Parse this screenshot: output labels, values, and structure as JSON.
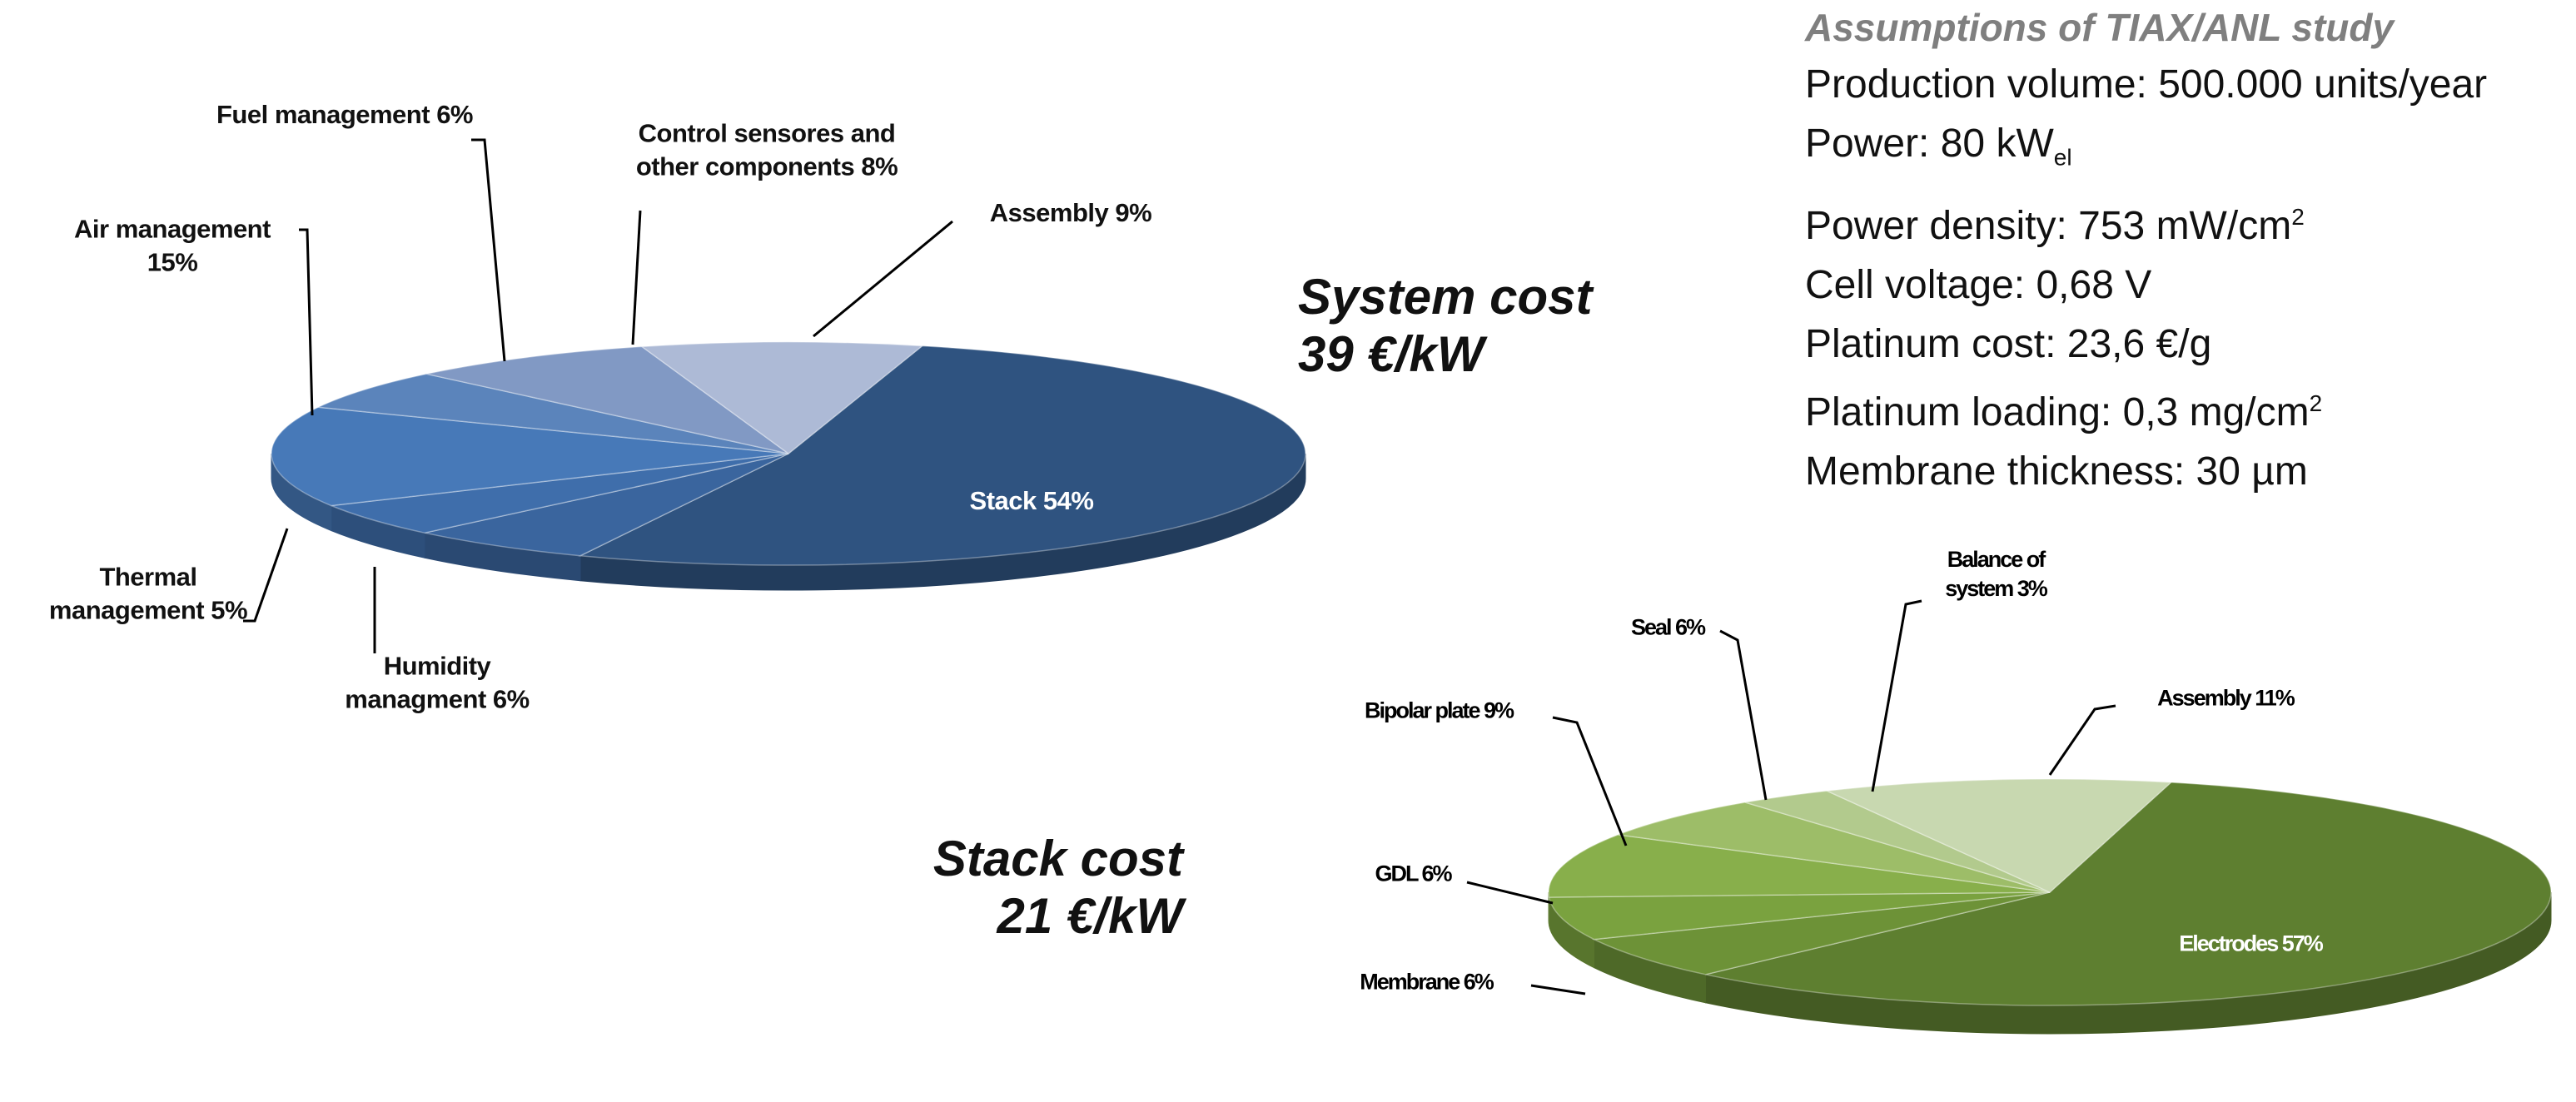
{
  "chart_data": [
    {
      "type": "pie",
      "title": "System cost",
      "subtitle": "39 €/kW",
      "categories": [
        "Stack",
        "Humidity managment",
        "Thermal management",
        "Air management",
        "Fuel management",
        "Control sensores and other components",
        "Assembly"
      ],
      "values": [
        54,
        6,
        5,
        15,
        6,
        8,
        9
      ],
      "value_labels": [
        "54%",
        "6%",
        "5%",
        "15%",
        "6%",
        "8%",
        "9%"
      ],
      "colors": [
        "#2f5380",
        "#3a659e",
        "#3f6eab",
        "#4779b8",
        "#5b84bb",
        "#8199c4",
        "#adbad6"
      ]
    },
    {
      "type": "pie",
      "title": "Stack cost",
      "subtitle": "21 €/kW",
      "categories": [
        "Electrodes",
        "Membrane",
        "GDL",
        "Bipolar plate",
        "Seal",
        "Balance of system",
        "Assembly"
      ],
      "values": [
        57,
        6,
        6,
        9,
        6,
        3,
        11
      ],
      "value_labels": [
        "57%",
        "6%",
        "6%",
        "9%",
        "6%",
        "3%",
        "11%"
      ],
      "colors": [
        "#5e7f30",
        "#6d9237",
        "#7aa23f",
        "#88af4b",
        "#9dbd68",
        "#b2ca8d",
        "#c8d8b0"
      ]
    }
  ],
  "assumptions": {
    "title": "Assumptions of TIAX/ANL study",
    "lines": [
      {
        "text": "Production volume: 500.000 units/year"
      },
      {
        "text": "Power: 80 kW",
        "sub": "el"
      },
      {
        "text": "Power density: 753 mW/cm",
        "sup": "2"
      },
      {
        "text": "Cell voltage: 0,68 V"
      },
      {
        "text": "Platinum cost: 23,6 €/g"
      },
      {
        "text": "Platinum loading: 0,3 mg/cm",
        "sup": "2"
      },
      {
        "text": "Membrane thickness: 30 µm"
      }
    ]
  }
}
